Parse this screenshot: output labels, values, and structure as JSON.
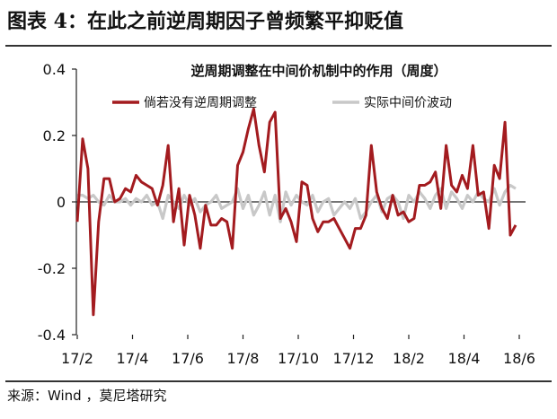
{
  "figure": {
    "title": "图表 4：在此之前逆周期因子曾频繁平抑贬值",
    "source": "来源：Wind ，莫尼塔研究"
  },
  "chart_data": {
    "type": "line",
    "title": "逆周期调整在中间价机制中的作用（周度）",
    "xlabel": "",
    "ylabel": "",
    "ylim": [
      -0.4,
      0.4
    ],
    "yticks": [
      "0.4",
      "0.2",
      "0",
      "-0.2",
      "-0.4"
    ],
    "xticks": [
      "17/2",
      "17/4",
      "17/6",
      "17/8",
      "17/10",
      "17/12",
      "18/2",
      "18/4",
      "18/6"
    ],
    "legend_position": "top",
    "grid": false,
    "series": [
      {
        "name": "倘若没有逆周期调整",
        "color": "#a31b1f",
        "values": [
          -0.06,
          0.19,
          0.1,
          -0.34,
          -0.06,
          0.07,
          0.07,
          0.0,
          0.01,
          0.04,
          0.03,
          0.08,
          0.06,
          0.05,
          0.04,
          -0.01,
          0.05,
          0.17,
          -0.06,
          0.04,
          -0.13,
          0.02,
          -0.04,
          -0.14,
          -0.01,
          -0.07,
          -0.07,
          -0.05,
          -0.06,
          -0.14,
          0.11,
          0.15,
          0.22,
          0.28,
          0.17,
          0.09,
          0.24,
          0.27,
          -0.05,
          -0.02,
          -0.06,
          -0.12,
          0.06,
          0.05,
          -0.05,
          -0.09,
          -0.06,
          -0.06,
          -0.05,
          -0.08,
          -0.11,
          -0.14,
          -0.08,
          -0.08,
          -0.04,
          0.17,
          0.03,
          -0.02,
          -0.05,
          0.02,
          -0.04,
          -0.03,
          -0.06,
          -0.05,
          0.05,
          0.05,
          0.06,
          0.09,
          -0.02,
          0.17,
          0.05,
          0.03,
          0.08,
          0.04,
          0.17,
          0.02,
          0.03,
          -0.08,
          0.11,
          0.07,
          0.24,
          -0.1,
          -0.07
        ]
      },
      {
        "name": "实际中间价波动",
        "color": "#c8c8c8",
        "values": [
          0.02,
          0.02,
          0.01,
          0.02,
          0.0,
          -0.01,
          0.02,
          0.0,
          0.0,
          0.01,
          -0.01,
          0.01,
          0.0,
          0.02,
          -0.01,
          0.0,
          -0.05,
          0.02,
          0.0,
          -0.02,
          0.02,
          -0.01,
          0.01,
          -0.03,
          -0.01,
          0.0,
          0.02,
          -0.02,
          -0.01,
          0.0,
          0.04,
          -0.02,
          0.02,
          -0.04,
          -0.01,
          0.03,
          -0.04,
          0.02,
          -0.06,
          0.03,
          -0.01,
          0.02,
          0.0,
          -0.01,
          0.02,
          -0.03,
          0.0,
          0.01,
          -0.04,
          -0.02,
          0.0,
          -0.02,
          0.01,
          -0.05,
          -0.03,
          0.0,
          0.02,
          -0.03,
          0.01,
          0.02,
          0.0,
          -0.05,
          0.02,
          0.0,
          0.03,
          0.01,
          -0.02,
          0.02,
          0.04,
          -0.02,
          0.03,
          0.01,
          -0.02,
          0.02,
          0.0,
          0.03,
          0.01,
          0.0,
          0.04,
          -0.01,
          0.03,
          0.05,
          0.04
        ]
      }
    ]
  }
}
